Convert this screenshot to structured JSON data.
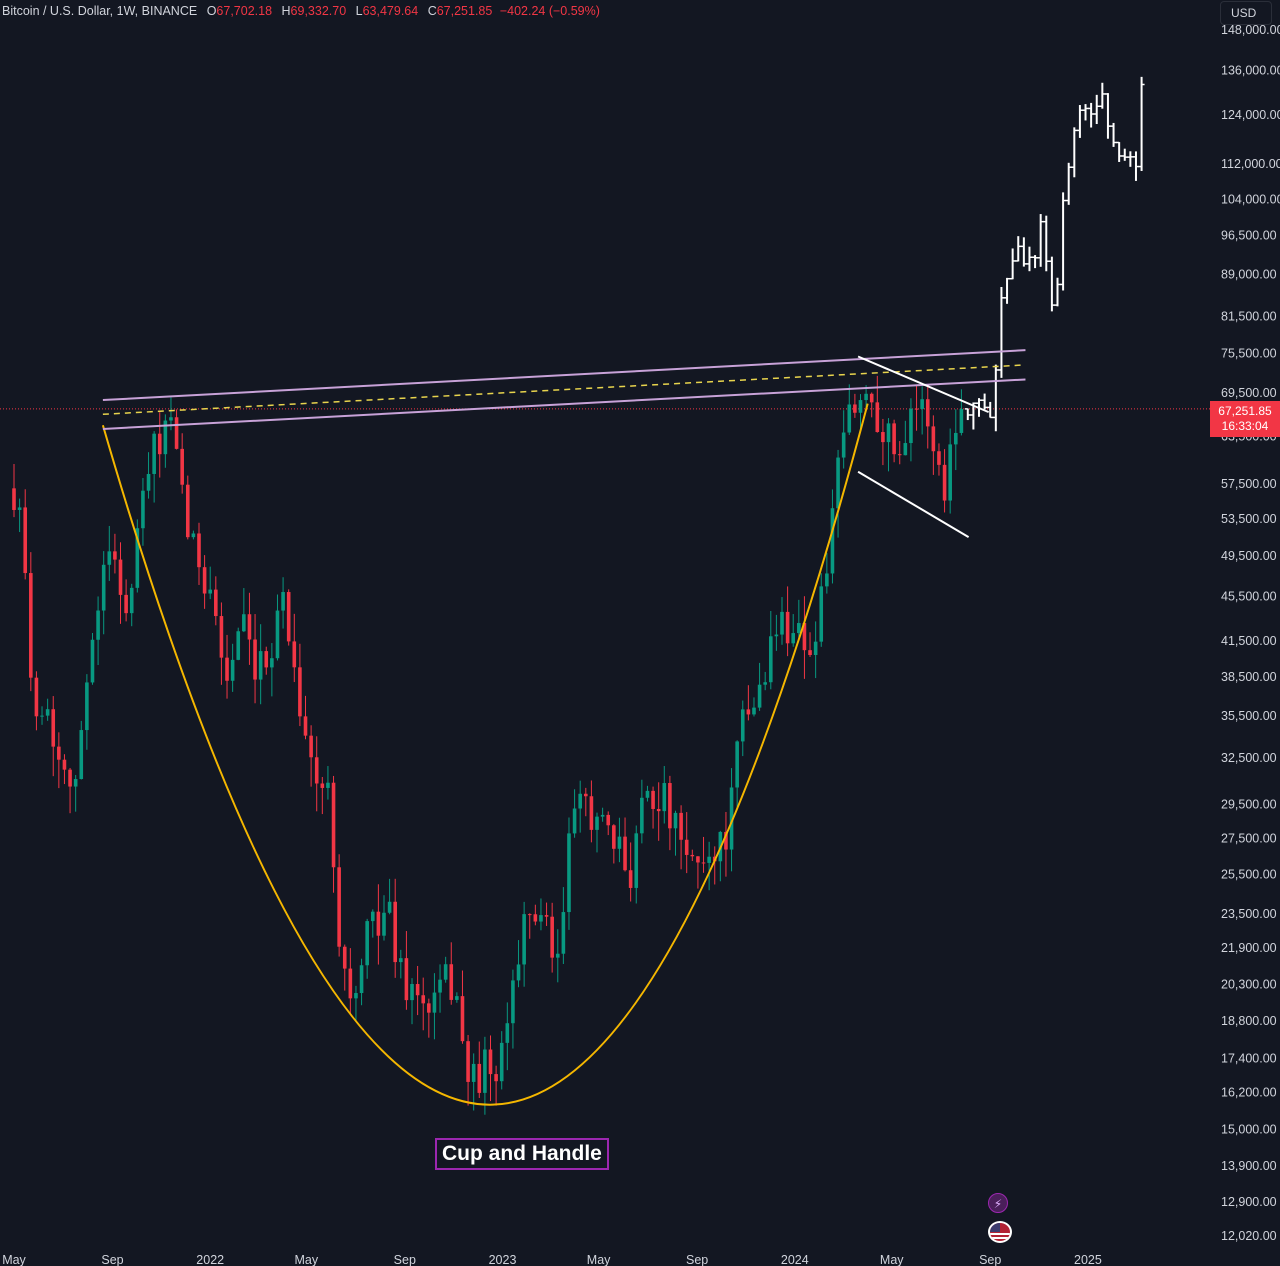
{
  "header": {
    "symbol": "Bitcoin / U.S. Dollar, 1W, BINANCE",
    "open_label": "O",
    "open": "67,702.18",
    "high_label": "H",
    "high": "69,332.70",
    "low_label": "L",
    "low": "63,479.64",
    "close_label": "C",
    "close": "67,251.85",
    "change": "−402.24 (−0.59%)"
  },
  "currency_button": "USD",
  "last_price": {
    "price": "67,251.85",
    "countdown": "16:33:04"
  },
  "pattern_label": "Cup and Handle",
  "icons": [
    "lightning-icon",
    "us-flag-icon"
  ],
  "colors": {
    "background": "#131722",
    "bull": "#089981",
    "bear": "#f23645",
    "cup_curve": "#f5b700",
    "channel": "#c8a2d8",
    "mid_dash": "#e8d44d",
    "projection": "#ffffff",
    "label_border": "#9c27b0"
  },
  "chart_data": {
    "type": "candlestick",
    "scale": "log",
    "ylim": [
      12000,
      150000
    ],
    "xlim": [
      "2021-05-01",
      "2025-04-01"
    ],
    "y_ticks": [
      "148,000.00",
      "136,000.00",
      "124,000.00",
      "112,000.00",
      "104,000.00",
      "96,500.00",
      "89,000.00",
      "81,500.00",
      "75,500.00",
      "69,500.00",
      "63,500.00",
      "57,500.00",
      "53,500.00",
      "49,500.00",
      "45,500.00",
      "41,500.00",
      "38,500.00",
      "35,500.00",
      "32,500.00",
      "29,500.00",
      "27,500.00",
      "25,500.00",
      "23,500.00",
      "21,900.00",
      "20,300.00",
      "18,800.00",
      "17,400.00",
      "16,200.00",
      "15,000.00",
      "13,900.00",
      "12,900.00",
      "12,020.00"
    ],
    "x_ticks": [
      {
        "label": "May",
        "date": "2021-05-01"
      },
      {
        "label": "Sep",
        "date": "2021-09-01"
      },
      {
        "label": "2022",
        "date": "2022-01-01"
      },
      {
        "label": "May",
        "date": "2022-05-01"
      },
      {
        "label": "Sep",
        "date": "2022-09-01"
      },
      {
        "label": "2023",
        "date": "2023-01-01"
      },
      {
        "label": "May",
        "date": "2023-05-01"
      },
      {
        "label": "Sep",
        "date": "2023-09-01"
      },
      {
        "label": "2024",
        "date": "2024-01-01"
      },
      {
        "label": "May",
        "date": "2024-05-01"
      },
      {
        "label": "Sep",
        "date": "2024-09-01"
      },
      {
        "label": "2025",
        "date": "2025-01-01"
      }
    ],
    "last_price_line": 67251.85,
    "price_anchors": [
      [
        "2021-05-01",
        57000
      ],
      [
        "2021-05-10",
        56000
      ],
      [
        "2021-05-20",
        38000
      ],
      [
        "2021-06-10",
        36000
      ],
      [
        "2021-06-25",
        33000
      ],
      [
        "2021-07-20",
        31000
      ],
      [
        "2021-08-05",
        42000
      ],
      [
        "2021-08-20",
        48000
      ],
      [
        "2021-09-05",
        50000
      ],
      [
        "2021-09-20",
        43000
      ],
      [
        "2021-10-10",
        57000
      ],
      [
        "2021-10-25",
        62000
      ],
      [
        "2021-11-10",
        66000
      ],
      [
        "2021-11-25",
        57000
      ],
      [
        "2021-12-10",
        50000
      ],
      [
        "2022-01-01",
        47000
      ],
      [
        "2022-01-20",
        38000
      ],
      [
        "2022-02-10",
        43000
      ],
      [
        "2022-02-25",
        38000
      ],
      [
        "2022-03-15",
        40000
      ],
      [
        "2022-03-30",
        46500
      ],
      [
        "2022-04-15",
        40000
      ],
      [
        "2022-05-10",
        31000
      ],
      [
        "2022-05-30",
        30000
      ],
      [
        "2022-06-15",
        21000
      ],
      [
        "2022-07-01",
        19500
      ],
      [
        "2022-07-20",
        23000
      ],
      [
        "2022-08-10",
        24000
      ],
      [
        "2022-08-25",
        21000
      ],
      [
        "2022-09-10",
        20000
      ],
      [
        "2022-10-01",
        19200
      ],
      [
        "2022-10-25",
        20500
      ],
      [
        "2022-11-08",
        20000
      ],
      [
        "2022-11-15",
        16500
      ],
      [
        "2022-12-10",
        17000
      ],
      [
        "2022-12-28",
        16600
      ],
      [
        "2023-01-20",
        22000
      ],
      [
        "2023-02-15",
        24000
      ],
      [
        "2023-03-10",
        20500
      ],
      [
        "2023-03-25",
        27500
      ],
      [
        "2023-04-15",
        30000
      ],
      [
        "2023-05-10",
        27500
      ],
      [
        "2023-06-10",
        25800
      ],
      [
        "2023-06-25",
        30500
      ],
      [
        "2023-07-20",
        30000
      ],
      [
        "2023-08-20",
        26000
      ],
      [
        "2023-09-15",
        26500
      ],
      [
        "2023-10-10",
        28000
      ],
      [
        "2023-10-25",
        34500
      ],
      [
        "2023-11-15",
        37000
      ],
      [
        "2023-12-10",
        43000
      ],
      [
        "2024-01-01",
        43000
      ],
      [
        "2024-01-25",
        40500
      ],
      [
        "2024-02-15",
        52000
      ],
      [
        "2024-03-05",
        66000
      ],
      [
        "2024-03-20",
        68000
      ],
      [
        "2024-04-05",
        69500
      ],
      [
        "2024-04-25",
        63500
      ],
      [
        "2024-05-10",
        61500
      ],
      [
        "2024-05-25",
        68500
      ],
      [
        "2024-06-15",
        66000
      ],
      [
        "2024-07-05",
        56500
      ],
      [
        "2024-07-20",
        66500
      ],
      [
        "2024-07-28",
        67251.85
      ]
    ],
    "projection_anchors": [
      [
        "2024-07-28",
        67251.85
      ],
      [
        "2024-08-15",
        69000
      ],
      [
        "2024-08-25",
        66500
      ],
      [
        "2024-09-05",
        68000
      ],
      [
        "2024-09-15",
        86000
      ],
      [
        "2024-10-01",
        95000
      ],
      [
        "2024-10-20",
        91000
      ],
      [
        "2024-11-05",
        99000
      ],
      [
        "2024-11-20",
        82000
      ],
      [
        "2024-12-01",
        103000
      ],
      [
        "2024-12-15",
        122000
      ],
      [
        "2025-01-01",
        124000
      ],
      [
        "2025-01-20",
        130000
      ],
      [
        "2025-02-05",
        112000
      ],
      [
        "2025-02-20",
        117000
      ],
      [
        "2025-03-01",
        108000
      ],
      [
        "2025-03-10",
        135000
      ]
    ],
    "cup_curve": [
      [
        "2021-08-20",
        65000
      ],
      [
        "2022-12-20",
        15800
      ],
      [
        "2024-04-01",
        68000
      ]
    ],
    "channel": {
      "upper": [
        [
          "2021-08-20",
          68500
        ],
        [
          "2024-10-15",
          76000
        ]
      ],
      "lower": [
        [
          "2021-08-20",
          64500
        ],
        [
          "2024-10-15",
          71500
        ]
      ],
      "mid": [
        [
          "2021-08-20",
          66500
        ],
        [
          "2024-10-15",
          73700
        ]
      ]
    },
    "handle": {
      "upper": [
        [
          "2024-03-20",
          75000
        ],
        [
          "2024-08-30",
          66800
        ]
      ],
      "lower": [
        [
          "2024-03-20",
          59000
        ],
        [
          "2024-08-05",
          51500
        ]
      ]
    }
  }
}
